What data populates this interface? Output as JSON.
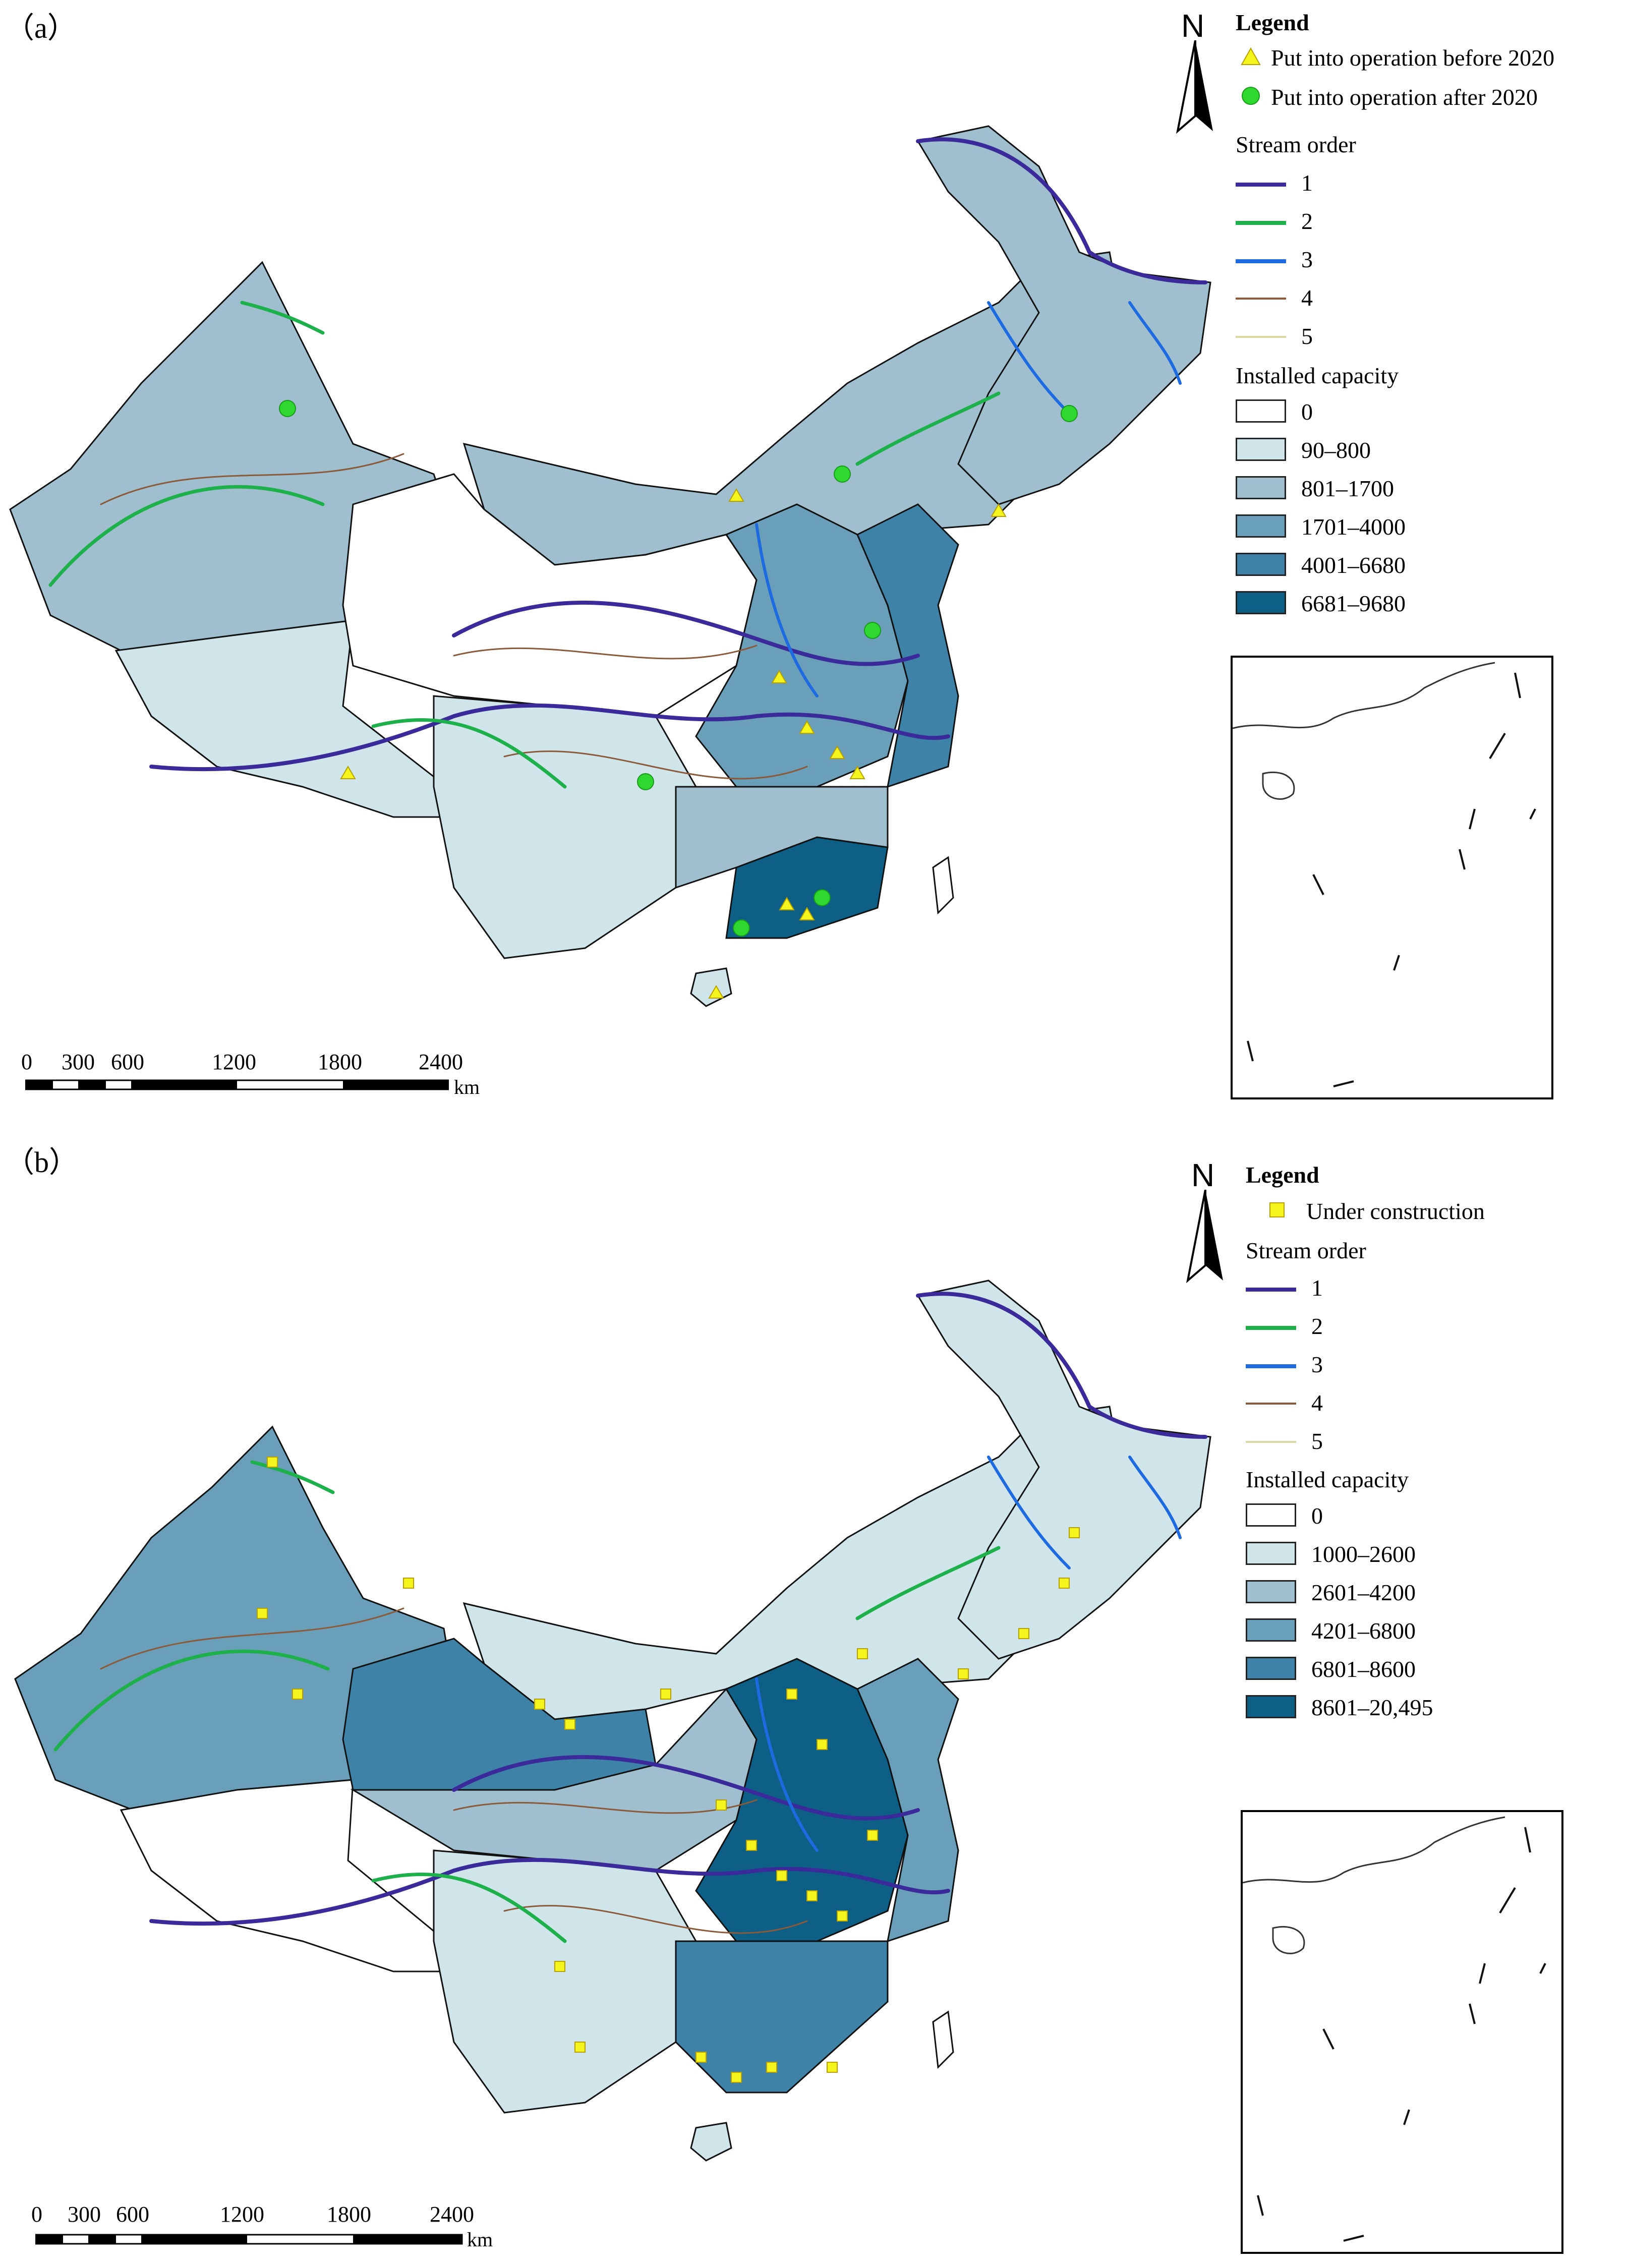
{
  "panels": [
    {
      "label": "（a）",
      "north": "N",
      "legend": {
        "title": "Legend",
        "markers": [
          {
            "label": "Put into operation before 2020",
            "shape": "triangle",
            "color": "#f5f51e"
          },
          {
            "label": "Put into operation after 2020",
            "shape": "circle",
            "color": "#2ed82e"
          }
        ],
        "stream_title": "Stream order",
        "streams": [
          {
            "label": "1",
            "color": "#3a2a9a"
          },
          {
            "label": "2",
            "color": "#1eb04a"
          },
          {
            "label": "3",
            "color": "#1e6ae0"
          },
          {
            "label": "4",
            "color": "#8a5a3a"
          },
          {
            "label": "5",
            "color": "#d8d8a0"
          }
        ],
        "capacity_title": "Installed capacity",
        "capacity": [
          {
            "label": "0",
            "color": "#ffffff"
          },
          {
            "label": "90–800",
            "color": "#cfe5ea"
          },
          {
            "label": "801–1700",
            "color": "#9fbfcf"
          },
          {
            "label": "1701–4000",
            "color": "#6a9fba"
          },
          {
            "label": "4001–6680",
            "color": "#3f82a8"
          },
          {
            "label": "6681–9680",
            "color": "#0e5f86"
          }
        ]
      },
      "scale": {
        "ticks": [
          "0",
          "300",
          "600",
          "1200",
          "1800",
          "2400"
        ],
        "unit": "km"
      }
    },
    {
      "label": "（b）",
      "north": "N",
      "legend": {
        "title": "Legend",
        "markers": [
          {
            "label": "Under construction",
            "shape": "square",
            "color": "#f5f51e"
          }
        ],
        "stream_title": "Stream order",
        "streams": [
          {
            "label": "1",
            "color": "#3a2a9a"
          },
          {
            "label": "2",
            "color": "#1eb04a"
          },
          {
            "label": "3",
            "color": "#1e6ae0"
          },
          {
            "label": "4",
            "color": "#8a5a3a"
          },
          {
            "label": "5",
            "color": "#d8d8a0"
          }
        ],
        "capacity_title": "Installed capacity",
        "capacity": [
          {
            "label": "0",
            "color": "#ffffff"
          },
          {
            "label": "1000–2600",
            "color": "#cfe5ea"
          },
          {
            "label": "2601–4200",
            "color": "#9fbfcf"
          },
          {
            "label": "4201–6800",
            "color": "#6a9fba"
          },
          {
            "label": "6801–8600",
            "color": "#3f82a8"
          },
          {
            "label": "8601–20,495",
            "color": "#0e5f86"
          }
        ]
      },
      "scale": {
        "ticks": [
          "0",
          "300",
          "600",
          "1200",
          "1800",
          "2400"
        ],
        "unit": "km"
      }
    }
  ]
}
